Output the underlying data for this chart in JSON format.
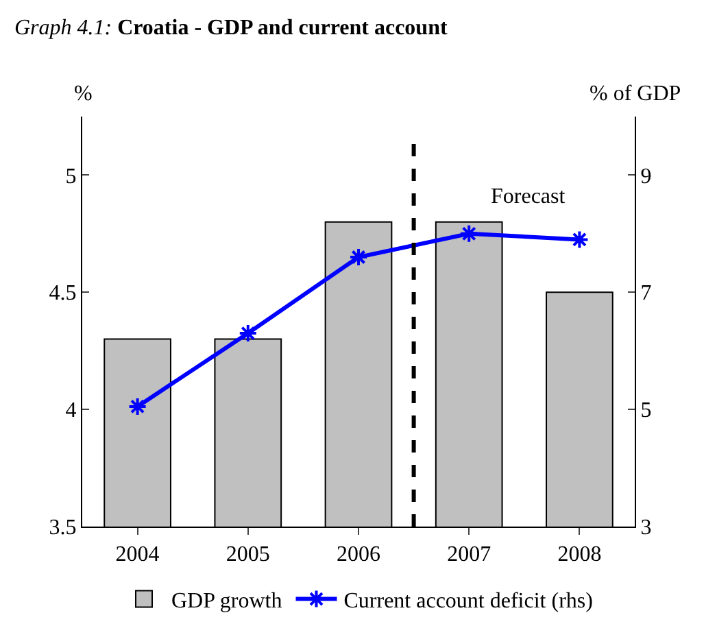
{
  "chart_data": {
    "type": "bar",
    "title": "Graph 4.1: Croatia - GDP and current account",
    "ylabel": "%",
    "y2label": "% of GDP",
    "x": [
      2004,
      2005,
      2006,
      2007,
      2008
    ],
    "xlim": [
      2003.5,
      2008.5
    ],
    "xticks": [
      2004,
      2005,
      2006,
      2007,
      2008
    ],
    "series": [
      {
        "name": "GDP growth",
        "color": "#c0c0c0",
        "values": [
          4.3,
          4.3,
          4.8,
          4.8,
          4.5
        ]
      },
      {
        "name": "Current account deficit (rhs)",
        "type": "line",
        "axis": "y2",
        "color": "#0000ff",
        "marker": "cross",
        "values": [
          5.05,
          6.3,
          7.6,
          8.0,
          7.9
        ]
      }
    ],
    "ylim": [
      3.5,
      5.25
    ],
    "yticks": [
      3.5,
      4,
      4.5,
      5
    ],
    "y2lim": [
      3,
      10
    ],
    "y2ticks": [
      3,
      5,
      7,
      9
    ],
    "ref_lines": [
      {
        "axis": "x",
        "value": 2006.5,
        "color": "#000000",
        "line_style": "dashed"
      }
    ],
    "annotations": [
      "Forecast"
    ],
    "legend": "bottom"
  }
}
